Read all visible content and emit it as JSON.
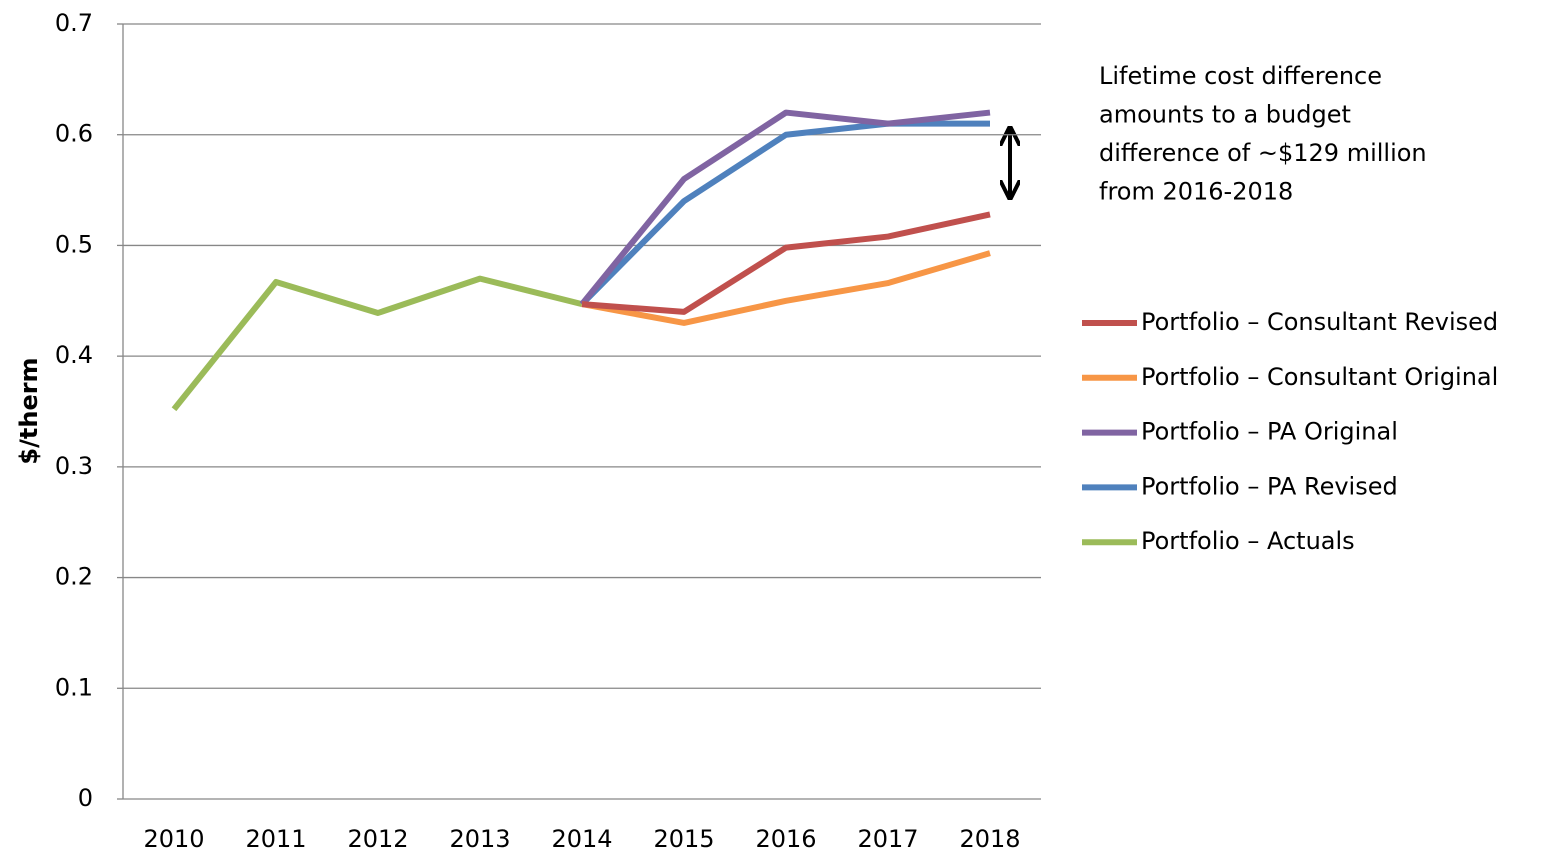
{
  "chart_data": {
    "type": "line",
    "ylabel": "$/therm",
    "categories": [
      "2010",
      "2011",
      "2012",
      "2013",
      "2014",
      "2015",
      "2016",
      "2017",
      "2018"
    ],
    "ylim": [
      0,
      0.7
    ],
    "yticks": [
      0,
      0.1,
      0.2,
      0.3,
      0.4,
      0.5,
      0.6,
      0.7
    ],
    "grid": true,
    "legend": "right",
    "annotation": [
      "Lifetime cost difference",
      "amounts to a budget",
      "difference of  ~$129 million",
      "from 2016-2018"
    ],
    "series": [
      {
        "name": "Portfolio – Consultant Revised",
        "color": "#c0504d",
        "values": [
          null,
          null,
          null,
          null,
          0.447,
          0.44,
          0.498,
          0.508,
          0.528
        ]
      },
      {
        "name": "Portfolio – Consultant Original",
        "color": "#f79646",
        "values": [
          null,
          null,
          null,
          null,
          0.447,
          0.43,
          0.45,
          0.466,
          0.493
        ]
      },
      {
        "name": "Portfolio – PA Original",
        "color": "#8064a2",
        "values": [
          null,
          null,
          null,
          null,
          0.447,
          0.56,
          0.62,
          0.61,
          0.62
        ]
      },
      {
        "name": "Portfolio – PA Revised",
        "color": "#4f81bd",
        "values": [
          null,
          null,
          null,
          null,
          0.447,
          0.54,
          0.6,
          0.61,
          0.61
        ]
      },
      {
        "name": "Portfolio – Actuals",
        "color": "#9bbb59",
        "values": [
          0.352,
          0.467,
          0.439,
          0.47,
          0.447,
          null,
          null,
          null,
          null
        ]
      }
    ]
  }
}
